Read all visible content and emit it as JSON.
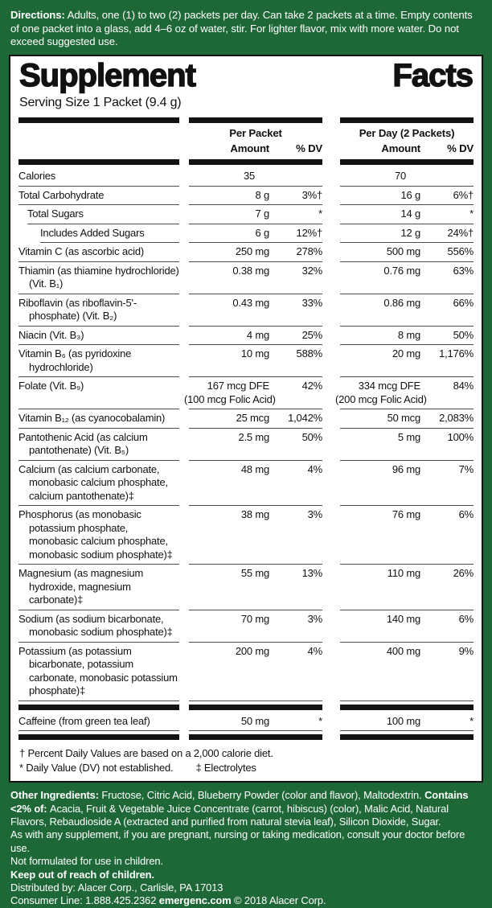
{
  "colors": {
    "label_green": "#1E6837",
    "bar_black": "#131313",
    "panel_white": "#FFFFFF"
  },
  "directions": {
    "label": "Directions:",
    "text": " Adults, one (1) to two (2) packets per day. Can take 2 packets at a time. Empty contents of one packet into a glass, add 4–6 oz of water, stir. For lighter flavor, mix with more water. Do not exceed suggested use."
  },
  "panel": {
    "title_word1": "Supplement",
    "title_word2": "Facts",
    "serving": "Serving Size 1 Packet (9.4 g)",
    "header": {
      "per_packet": "Per Packet",
      "per_day": "Per Day (2 Packets)",
      "amount": "Amount",
      "dv": "% DV"
    },
    "rows": [
      {
        "name": "Calories",
        "a1": "35",
        "d1": "",
        "a2": "70",
        "d2": "",
        "pad": true
      },
      {
        "name": "Total Carbohydrate",
        "a1": "8 g",
        "d1": "3%†",
        "a2": "16 g",
        "d2": "6%†"
      },
      {
        "name": "Total Sugars",
        "indent": 1,
        "a1": "7 g",
        "d1": "*",
        "a2": "14 g",
        "d2": "*"
      },
      {
        "name": "Includes Added Sugars",
        "indent": 2,
        "a1": "6 g",
        "d1": "12%†",
        "a2": "12 g",
        "d2": "24%†"
      },
      {
        "name": "Vitamin C (as ascorbic acid)",
        "a1": "250 mg",
        "d1": "278%",
        "a2": "500 mg",
        "d2": "556%"
      },
      {
        "name": "Thiamin (as thiamine hydrochloride) (Vit. B₁)",
        "a1": "0.38 mg",
        "d1": "32%",
        "a2": "0.76 mg",
        "d2": "63%"
      },
      {
        "name": "Riboflavin (as riboflavin-5'-phosphate) (Vit. B₂)",
        "a1": "0.43 mg",
        "d1": "33%",
        "a2": "0.86 mg",
        "d2": "66%"
      },
      {
        "name": "Niacin (Vit. B₃)",
        "a1": "4 mg",
        "d1": "25%",
        "a2": "8 mg",
        "d2": "50%"
      },
      {
        "name": "Vitamin B₆ (as pyridoxine hydrochloride)",
        "a1": "10 mg",
        "d1": "588%",
        "a2": "20 mg",
        "d2": "1,176%"
      },
      {
        "name": "Folate (Vit. B₉)",
        "a1": "167 mcg DFE",
        "sub1": "(100 mcg Folic Acid)",
        "d1": "42%",
        "a2": "334 mcg DFE",
        "sub2": "(200 mcg Folic Acid)",
        "d2": "84%"
      },
      {
        "name": "Vitamin B₁₂ (as cyanocobalamin)",
        "a1": "25 mcg",
        "d1": "1,042%",
        "a2": "50 mcg",
        "d2": "2,083%"
      },
      {
        "name": "Pantothenic Acid (as calcium pantothenate) (Vit. B₅)",
        "a1": "2.5 mg",
        "d1": "50%",
        "a2": "5 mg",
        "d2": "100%"
      },
      {
        "name": "Calcium (as calcium carbonate, monobasic calcium phosphate, calcium pantothenate)‡",
        "a1": "48 mg",
        "d1": "4%",
        "a2": "96 mg",
        "d2": "7%"
      },
      {
        "name": "Phosphorus (as monobasic potassium phosphate, monobasic calcium phosphate, monobasic sodium phosphate)‡",
        "a1": "38 mg",
        "d1": "3%",
        "a2": "76 mg",
        "d2": "6%"
      },
      {
        "name": "Magnesium (as magnesium hydroxide, magnesium carbonate)‡",
        "a1": "55 mg",
        "d1": "13%",
        "a2": "110 mg",
        "d2": "26%"
      },
      {
        "name": "Sodium (as sodium bicarbonate, monobasic sodium phosphate)‡",
        "a1": "70 mg",
        "d1": "3%",
        "a2": "140 mg",
        "d2": "6%"
      },
      {
        "name": "Potassium (as potassium bicarbonate, potassium carbonate, monobasic potassium phosphate)‡",
        "a1": "200 mg",
        "d1": "4%",
        "a2": "400 mg",
        "d2": "9%"
      },
      {
        "type": "bar"
      },
      {
        "name": "Caffeine (from green tea leaf)",
        "a1": "50 mg",
        "d1": "*",
        "a2": "100 mg",
        "d2": "*"
      },
      {
        "type": "bar"
      }
    ],
    "footnote1": "† Percent Daily Values are based on a 2,000 calorie diet.",
    "footnote2a": "* Daily Value (DV) not established.",
    "footnote2b": "‡ Electrolytes"
  },
  "bottom": {
    "lines": [
      {
        "segments": [
          {
            "text": "Other Ingredients: ",
            "bold": true
          },
          {
            "text": "Fructose, Citric Acid, Blueberry Powder (color and flavor), Maltodextrin. "
          },
          {
            "text": "Contains <2% of: ",
            "bold": true
          },
          {
            "text": "Acacia, Fruit & Vegetable Juice Concentrate (carrot, hibiscus) (color), Malic Acid, Natural Flavors, Rebaudioside A (extracted and purified from natural stevia leaf), Silicon Dioxide, Sugar."
          }
        ]
      },
      {
        "segments": [
          {
            "text": "As with any supplement, if you are pregnant, nursing or taking medication, consult your doctor before use."
          }
        ]
      },
      {
        "segments": [
          {
            "text": "Not formulated for use in children."
          }
        ]
      },
      {
        "segments": [
          {
            "text": "Keep out of reach of children.",
            "bold": true
          }
        ]
      },
      {
        "segments": [
          {
            "text": "Distributed by: Alacer Corp., Carlisle, PA 17013"
          }
        ]
      },
      {
        "segments": [
          {
            "text": "Consumer Line: 1.888.425.2362  "
          },
          {
            "text": "emergenc.com",
            "bold": true
          },
          {
            "text": "  © 2018 Alacer Corp."
          }
        ]
      }
    ]
  }
}
